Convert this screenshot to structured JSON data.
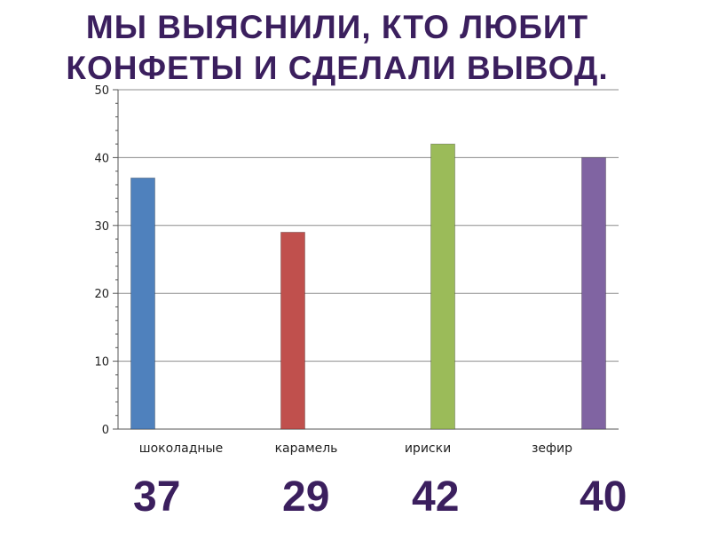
{
  "slide": {
    "title_lines": [
      "МЫ ВЫЯСНИЛИ, КТО ЛЮБИТ",
      "КОНФЕТЫ И СДЕЛАЛИ ВЫВОД."
    ],
    "value_captions": [
      "37",
      "29",
      "42",
      "40"
    ]
  },
  "chart_data": {
    "type": "bar",
    "categories": [
      "шоколадные",
      "карамель",
      "ириски",
      "зефир"
    ],
    "values": [
      37,
      29,
      42,
      40
    ],
    "colors": [
      "#4f81bd",
      "#c0504d",
      "#9bbb59",
      "#8064a2"
    ],
    "ylim": [
      0,
      50
    ],
    "yticks": [
      "0",
      "10",
      "20",
      "30",
      "40",
      "50"
    ],
    "grid": true,
    "legend": "none",
    "title": "",
    "xlabel": "",
    "ylabel": ""
  }
}
